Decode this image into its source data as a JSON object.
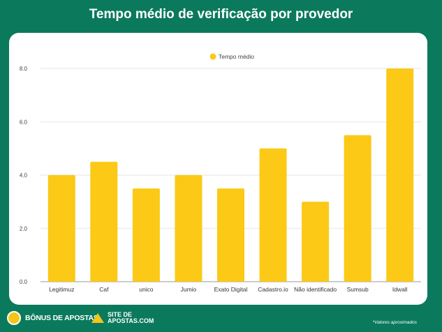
{
  "header": {
    "title": "Tempo médio de verificação por provedor"
  },
  "chart_data": {
    "type": "bar",
    "categories": [
      "Legitimuz",
      "Caf",
      "unico",
      "Jumio",
      "Exato Digital",
      "Cadastro.io",
      "Não identificado",
      "Sumsub",
      "Idwall"
    ],
    "series": [
      {
        "name": "Tempo médio",
        "values": [
          4.0,
          4.5,
          3.5,
          4.0,
          3.5,
          5.0,
          3.0,
          5.5,
          8.0
        ]
      }
    ],
    "ylim": [
      0,
      8
    ],
    "yticks": [
      "0.0",
      "2.0",
      "4.0",
      "6.0",
      "8.0"
    ],
    "grid": true,
    "legend_position": "top-center",
    "bar_color": "#fbc916"
  },
  "footer": {
    "logo1": "BÔNUS DE APOSTAS",
    "logo2": "SITE DE APOSTAS.COM",
    "note": "*Valores aproximados"
  }
}
